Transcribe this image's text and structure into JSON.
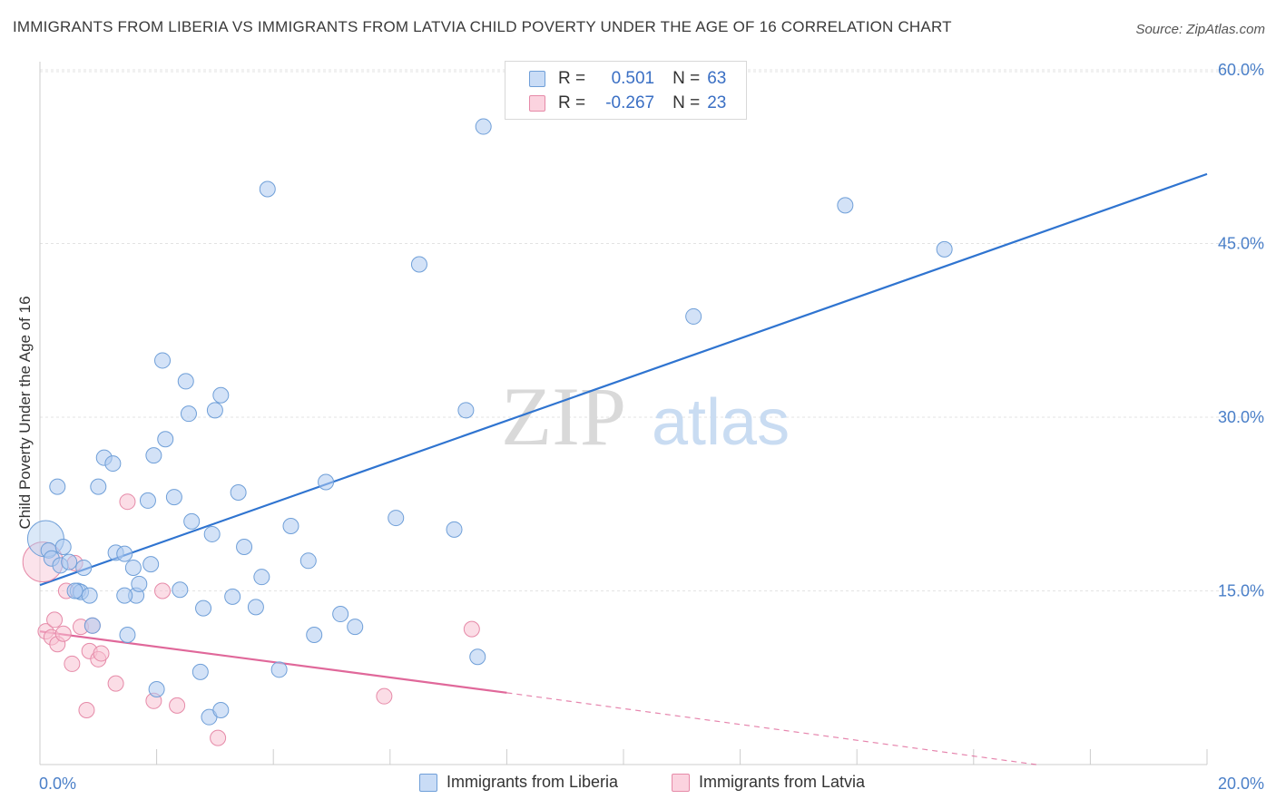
{
  "title": "IMMIGRANTS FROM LIBERIA VS IMMIGRANTS FROM LATVIA CHILD POVERTY UNDER THE AGE OF 16 CORRELATION CHART",
  "source": "Source: ZipAtlas.com",
  "watermark": {
    "zip": "ZIP",
    "atlas": "atlas"
  },
  "legend": {
    "r_label": "R =",
    "n_label": "N =",
    "series": [
      {
        "r": "0.501",
        "n": "63"
      },
      {
        "r": "-0.267",
        "n": "23"
      }
    ]
  },
  "bottom_legend": [
    "Immigrants from Liberia",
    "Immigrants from Latvia"
  ],
  "colors": {
    "liberia_fill": "#aecbf0",
    "liberia_stroke": "#6f9fd8",
    "liberia_line": "#2f74d0",
    "latvia_fill": "#f7c1d2",
    "latvia_stroke": "#e68aa8",
    "latvia_line": "#e0689a",
    "tick_text": "#4a7fc8",
    "grid": "#e3e3e3"
  },
  "chart_data": {
    "type": "scatter",
    "title": "IMMIGRANTS FROM LIBERIA VS IMMIGRANTS FROM LATVIA CHILD POVERTY UNDER THE AGE OF 16 CORRELATION CHART",
    "xlabel": "",
    "ylabel": "Child Poverty Under the Age of 16",
    "xlim": [
      0,
      20
    ],
    "ylim": [
      0,
      60
    ],
    "x_tick_labels": [
      "0.0%",
      "20.0%"
    ],
    "y_ticks": [
      15,
      30,
      45,
      60
    ],
    "y_tick_labels": [
      "15.0%",
      "30.0%",
      "45.0%",
      "60.0%"
    ],
    "grid": true,
    "legend_position": "top-center",
    "series": [
      {
        "name": "Immigrants from Liberia",
        "r": 0.501,
        "n": 63,
        "trend": {
          "x": [
            0,
            20
          ],
          "y": [
            15.5,
            51
          ]
        },
        "points": [
          [
            0.1,
            19.5,
            "big"
          ],
          [
            0.15,
            18.5
          ],
          [
            0.2,
            17.8
          ],
          [
            0.3,
            24
          ],
          [
            0.35,
            17.2
          ],
          [
            0.4,
            18.8
          ],
          [
            0.5,
            17.5
          ],
          [
            0.65,
            15
          ],
          [
            0.7,
            14.9
          ],
          [
            0.75,
            17
          ],
          [
            0.9,
            12
          ],
          [
            1.0,
            24
          ],
          [
            1.1,
            26.5
          ],
          [
            1.25,
            26
          ],
          [
            1.3,
            18.3
          ],
          [
            1.45,
            18.2
          ],
          [
            1.5,
            11.2
          ],
          [
            1.6,
            17
          ],
          [
            1.65,
            14.6
          ],
          [
            1.7,
            15.6
          ],
          [
            1.85,
            22.8
          ],
          [
            1.9,
            17.3
          ],
          [
            1.95,
            26.7
          ],
          [
            2.0,
            6.5
          ],
          [
            2.1,
            34.9
          ],
          [
            2.15,
            28.1
          ],
          [
            2.3,
            23.1
          ],
          [
            2.4,
            15.1
          ],
          [
            2.5,
            33.1
          ],
          [
            2.55,
            30.3
          ],
          [
            2.6,
            21
          ],
          [
            2.75,
            8
          ],
          [
            2.8,
            13.5
          ],
          [
            2.9,
            4.1
          ],
          [
            2.95,
            19.9
          ],
          [
            3.0,
            30.6
          ],
          [
            3.1,
            4.7
          ],
          [
            3.1,
            31.9
          ],
          [
            3.3,
            14.5
          ],
          [
            3.4,
            23.5
          ],
          [
            3.5,
            18.8
          ],
          [
            3.7,
            13.6
          ],
          [
            3.8,
            16.2
          ],
          [
            3.9,
            49.7
          ],
          [
            4.1,
            8.2
          ],
          [
            4.3,
            20.6
          ],
          [
            4.6,
            17.6
          ],
          [
            4.7,
            11.2
          ],
          [
            4.9,
            24.4
          ],
          [
            5.15,
            13
          ],
          [
            5.4,
            11.9
          ],
          [
            6.1,
            21.3
          ],
          [
            6.5,
            43.2
          ],
          [
            7.1,
            20.3
          ],
          [
            7.3,
            30.6
          ],
          [
            7.5,
            9.3
          ],
          [
            7.6,
            55.1
          ],
          [
            11.2,
            38.7
          ],
          [
            13.8,
            48.3
          ],
          [
            15.5,
            44.5
          ],
          [
            0.6,
            15
          ],
          [
            1.45,
            14.6
          ],
          [
            0.85,
            14.6
          ]
        ]
      },
      {
        "name": "Immigrants from Latvia",
        "r": -0.267,
        "n": 23,
        "trend": {
          "x": [
            0,
            8
          ],
          "y": [
            11.5,
            6.2
          ]
        },
        "trend_dashed": {
          "x": [
            8,
            20
          ],
          "y": [
            6.2,
            -2
          ]
        },
        "points": [
          [
            0.05,
            17.5,
            "big"
          ],
          [
            0.1,
            11.5
          ],
          [
            0.2,
            11
          ],
          [
            0.25,
            12.5
          ],
          [
            0.3,
            10.4
          ],
          [
            0.4,
            11.3
          ],
          [
            0.45,
            15
          ],
          [
            0.55,
            8.7
          ],
          [
            0.6,
            17.4
          ],
          [
            0.7,
            11.9
          ],
          [
            0.8,
            4.7
          ],
          [
            0.85,
            9.8
          ],
          [
            0.9,
            12
          ],
          [
            1.0,
            9.1
          ],
          [
            1.05,
            9.6
          ],
          [
            1.3,
            7
          ],
          [
            1.5,
            22.7
          ],
          [
            1.95,
            5.5
          ],
          [
            2.1,
            15
          ],
          [
            2.35,
            5.1
          ],
          [
            3.05,
            2.3
          ],
          [
            5.9,
            5.9
          ],
          [
            7.4,
            11.7
          ]
        ]
      }
    ]
  }
}
